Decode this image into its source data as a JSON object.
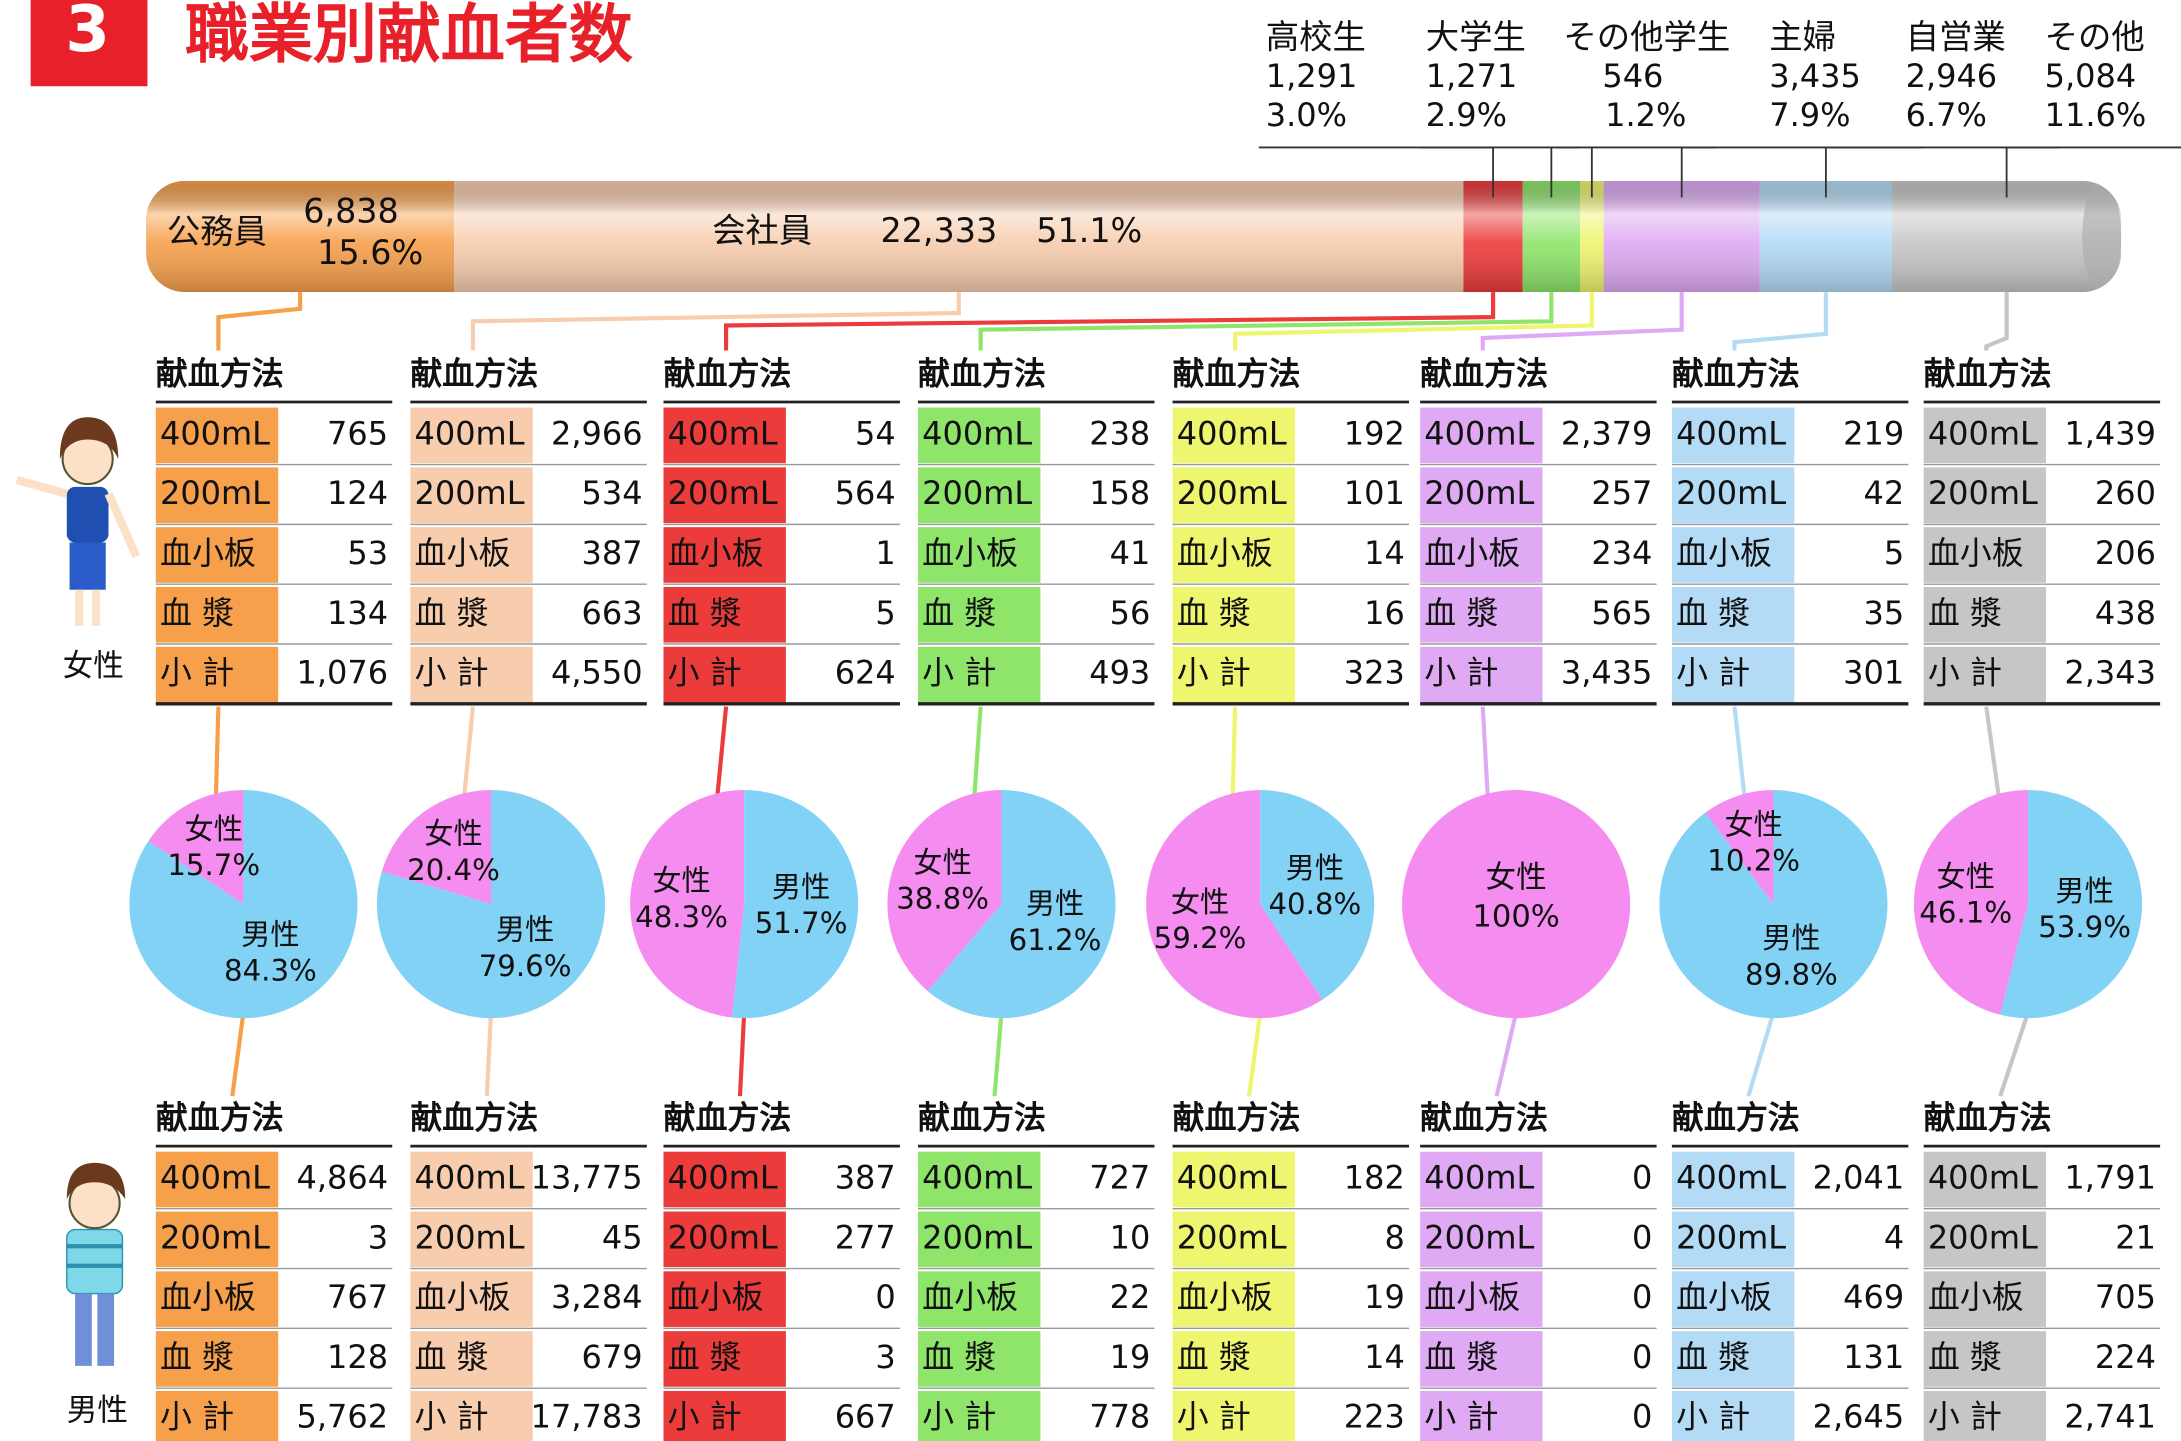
{
  "header": {
    "number": "3",
    "title": "職業別献血者数"
  },
  "table_header": "献血方法",
  "row_labels": [
    "400mL",
    "200mL",
    "血小板",
    "血 漿",
    "小 計"
  ],
  "gender_labels": {
    "female": "女性",
    "male": "男性"
  },
  "pie_colors": {
    "female": "#f58cf0",
    "male": "#82d2f6"
  },
  "occupations": [
    {
      "name": "公務員",
      "color": "#f7a04c",
      "total": "6,838",
      "share": 15.6,
      "share_label": "15.6%",
      "female": [
        "765",
        "124",
        "53",
        "134",
        "1,076"
      ],
      "male": [
        "4,864",
        "3",
        "767",
        "128",
        "5,762"
      ],
      "pie": {
        "female": 15.7,
        "female_label": "15.7%",
        "male": 84.3,
        "male_label": "84.3%"
      }
    },
    {
      "name": "会社員",
      "color": "#f7cdae",
      "total": "22,333",
      "share": 51.1,
      "share_label": "51.1%",
      "female": [
        "2,966",
        "534",
        "387",
        "663",
        "4,550"
      ],
      "male": [
        "13,775",
        "45",
        "3,284",
        "679",
        "17,783"
      ],
      "pie": {
        "female": 20.4,
        "female_label": "20.4%",
        "male": 79.6,
        "male_label": "79.6%"
      }
    },
    {
      "name": "高校生",
      "color": "#ec3b3b",
      "total": "1,291",
      "share": 3.0,
      "share_label": "3.0%",
      "female": [
        "54",
        "564",
        "1",
        "5",
        "624"
      ],
      "male": [
        "387",
        "277",
        "0",
        "3",
        "667"
      ],
      "pie": {
        "female": 48.3,
        "female_label": "48.3%",
        "male": 51.7,
        "male_label": "51.7%"
      }
    },
    {
      "name": "大学生",
      "color": "#8ee56a",
      "total": "1,271",
      "share": 2.9,
      "share_label": "2.9%",
      "female": [
        "238",
        "158",
        "41",
        "56",
        "493"
      ],
      "male": [
        "727",
        "10",
        "22",
        "19",
        "778"
      ],
      "pie": {
        "female": 38.8,
        "female_label": "38.8%",
        "male": 61.2,
        "male_label": "61.2%"
      }
    },
    {
      "name": "その他学生",
      "color": "#eef56e",
      "total": "546",
      "share": 1.2,
      "share_label": "1.2%",
      "female": [
        "192",
        "101",
        "14",
        "16",
        "323"
      ],
      "male": [
        "182",
        "8",
        "19",
        "14",
        "223"
      ],
      "pie": {
        "female": 59.2,
        "female_label": "59.2%",
        "male": 40.8,
        "male_label": "40.8%"
      }
    },
    {
      "name": "主婦",
      "color": "#dfaaf3",
      "total": "3,435",
      "share": 7.9,
      "share_label": "7.9%",
      "female": [
        "2,379",
        "257",
        "234",
        "565",
        "3,435"
      ],
      "male": [
        "0",
        "0",
        "0",
        "0",
        "0"
      ],
      "pie": {
        "female": 100,
        "female_label": "100%"
      }
    },
    {
      "name": "自営業",
      "color": "#b3dbf6",
      "total": "2,946",
      "share": 6.7,
      "share_label": "6.7%",
      "female": [
        "219",
        "42",
        "5",
        "35",
        "301"
      ],
      "male": [
        "2,041",
        "4",
        "469",
        "131",
        "2,645"
      ],
      "pie": {
        "female": 10.2,
        "female_label": "10.2%",
        "male": 89.8,
        "male_label": "89.8%"
      }
    },
    {
      "name": "その他",
      "color": "#c6c6c6",
      "total": "5,084",
      "share": 11.6,
      "share_label": "11.6%",
      "female": [
        "1,439",
        "260",
        "206",
        "438",
        "2,343"
      ],
      "male": [
        "1,791",
        "21",
        "705",
        "224",
        "2,741"
      ],
      "pie": {
        "female": 46.1,
        "female_label": "46.1%",
        "male": 53.9,
        "male_label": "53.9%"
      }
    }
  ]
}
